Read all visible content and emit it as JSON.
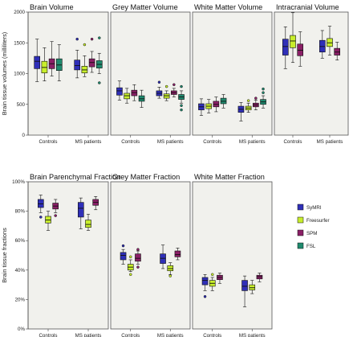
{
  "colors": {
    "SyMRI": "#2f2fb8",
    "Freesurfer": "#c8ee2c",
    "SPM": "#8a1f66",
    "FSL": "#1f8a6e",
    "panel_bg": "#f1f1ed"
  },
  "legend": [
    {
      "name": "SyMRI",
      "color": "#2f2fb8"
    },
    {
      "name": "Freesurfer",
      "color": "#c8ee2c"
    },
    {
      "name": "SPM",
      "color": "#8a1f66"
    },
    {
      "name": "FSL",
      "color": "#1f8a6e"
    }
  ],
  "rows": [
    {
      "ylabel": "Brain tissue volumes (milliliters)",
      "yticks": [
        "0",
        "500",
        "1000",
        "1500",
        "2000"
      ],
      "ylim": [
        0,
        2000
      ]
    },
    {
      "ylabel": "Brain tissue fractions",
      "yticks": [
        "0%",
        "20%",
        "40%",
        "60%",
        "80%",
        "100%"
      ],
      "ylim": [
        0,
        100
      ]
    }
  ],
  "chart_data": [
    {
      "type": "box",
      "title": "Brain Volume",
      "row": 0,
      "ylim": [
        0,
        2000
      ],
      "categories": [
        "Controls",
        "MS patients"
      ],
      "series": [
        {
          "name": "SyMRI",
          "boxes": [
            {
              "min": 870,
              "q1": 1080,
              "median": 1200,
              "q3": 1280,
              "max": 1560,
              "outliers": []
            },
            {
              "min": 930,
              "q1": 1060,
              "median": 1130,
              "q3": 1220,
              "max": 1380,
              "outliers": [
                1560
              ]
            }
          ]
        },
        {
          "name": "Freesurfer",
          "boxes": [
            {
              "min": 880,
              "q1": 1010,
              "median": 1100,
              "q3": 1200,
              "max": 1420,
              "outliers": []
            },
            {
              "min": 950,
              "q1": 1010,
              "median": 1060,
              "q3": 1120,
              "max": 1290,
              "outliers": [
                1470
              ]
            }
          ]
        },
        {
          "name": "SPM",
          "boxes": [
            {
              "min": 960,
              "q1": 1080,
              "median": 1160,
              "q3": 1240,
              "max": 1520,
              "outliers": []
            },
            {
              "min": 1020,
              "q1": 1110,
              "median": 1180,
              "q3": 1240,
              "max": 1360,
              "outliers": [
                1560
              ]
            }
          ]
        },
        {
          "name": "FSL",
          "boxes": [
            {
              "min": 880,
              "q1": 1050,
              "median": 1140,
              "q3": 1240,
              "max": 1470,
              "outliers": []
            },
            {
              "min": 1000,
              "q1": 1090,
              "median": 1150,
              "q3": 1210,
              "max": 1330,
              "outliers": [
                1580,
                850
              ]
            }
          ]
        }
      ]
    },
    {
      "type": "box",
      "title": "Grey Matter Volume",
      "row": 0,
      "ylim": [
        0,
        2000
      ],
      "categories": [
        "Controls",
        "MS patients"
      ],
      "series": [
        {
          "name": "SyMRI",
          "boxes": [
            {
              "min": 570,
              "q1": 650,
              "median": 720,
              "q3": 770,
              "max": 880,
              "outliers": []
            },
            {
              "min": 600,
              "q1": 640,
              "median": 680,
              "q3": 720,
              "max": 780,
              "outliers": [
                860
              ]
            }
          ]
        },
        {
          "name": "Freesurfer",
          "boxes": [
            {
              "min": 520,
              "q1": 590,
              "median": 640,
              "q3": 680,
              "max": 760,
              "outliers": []
            },
            {
              "min": 560,
              "q1": 600,
              "median": 640,
              "q3": 670,
              "max": 720,
              "outliers": [
                790
              ]
            }
          ]
        },
        {
          "name": "SPM",
          "boxes": [
            {
              "min": 560,
              "q1": 640,
              "median": 690,
              "q3": 730,
              "max": 820,
              "outliers": []
            },
            {
              "min": 620,
              "q1": 660,
              "median": 690,
              "q3": 720,
              "max": 760,
              "outliers": [
                820
              ]
            }
          ]
        },
        {
          "name": "FSL",
          "boxes": [
            {
              "min": 450,
              "q1": 550,
              "median": 590,
              "q3": 640,
              "max": 730,
              "outliers": []
            },
            {
              "min": 520,
              "q1": 580,
              "median": 620,
              "q3": 660,
              "max": 720,
              "outliers": [
                790,
                480,
                410
              ]
            }
          ]
        }
      ]
    },
    {
      "type": "box",
      "title": "White Matter Volume",
      "row": 0,
      "ylim": [
        0,
        2000
      ],
      "categories": [
        "Controls",
        "MS patients"
      ],
      "series": [
        {
          "name": "SyMRI",
          "boxes": [
            {
              "min": 320,
              "q1": 410,
              "median": 460,
              "q3": 510,
              "max": 590,
              "outliers": []
            },
            {
              "min": 230,
              "q1": 370,
              "median": 420,
              "q3": 470,
              "max": 530,
              "outliers": []
            }
          ]
        },
        {
          "name": "Freesurfer",
          "boxes": [
            {
              "min": 360,
              "q1": 430,
              "median": 470,
              "q3": 510,
              "max": 580,
              "outliers": []
            },
            {
              "min": 370,
              "q1": 410,
              "median": 440,
              "q3": 470,
              "max": 520,
              "outliers": [
                560
              ]
            }
          ]
        },
        {
          "name": "SPM",
          "boxes": [
            {
              "min": 380,
              "q1": 460,
              "median": 500,
              "q3": 550,
              "max": 620,
              "outliers": []
            },
            {
              "min": 410,
              "q1": 460,
              "median": 490,
              "q3": 520,
              "max": 570,
              "outliers": [
                600
              ]
            }
          ]
        },
        {
          "name": "FSL",
          "boxes": [
            {
              "min": 440,
              "q1": 510,
              "median": 550,
              "q3": 600,
              "max": 660,
              "outliers": []
            },
            {
              "min": 440,
              "q1": 500,
              "median": 540,
              "q3": 580,
              "max": 640,
              "outliers": [
                750,
                690
              ]
            }
          ]
        }
      ]
    },
    {
      "type": "box",
      "title": "Intracranial Volume",
      "row": 0,
      "ylim": [
        0,
        2000
      ],
      "categories": [
        "Controls",
        "MS patients"
      ],
      "series": [
        {
          "name": "SyMRI",
          "boxes": [
            {
              "min": 1080,
              "q1": 1300,
              "median": 1440,
              "q3": 1560,
              "max": 1760,
              "outliers": []
            },
            {
              "min": 1250,
              "q1": 1350,
              "median": 1440,
              "q3": 1540,
              "max": 1700,
              "outliers": []
            }
          ]
        },
        {
          "name": "Freesurfer",
          "boxes": [
            {
              "min": 1180,
              "q1": 1420,
              "median": 1530,
              "q3": 1620,
              "max": 1990,
              "outliers": []
            },
            {
              "min": 1300,
              "q1": 1440,
              "median": 1500,
              "q3": 1570,
              "max": 1770,
              "outliers": []
            }
          ]
        },
        {
          "name": "SPM",
          "boxes": [
            {
              "min": 1120,
              "q1": 1290,
              "median": 1380,
              "q3": 1480,
              "max": 1680,
              "outliers": []
            },
            {
              "min": 1220,
              "q1": 1300,
              "median": 1350,
              "q3": 1410,
              "max": 1510,
              "outliers": []
            }
          ]
        }
      ]
    },
    {
      "type": "box",
      "title": "Brain Parenchymal Fraction",
      "row": 1,
      "ylim": [
        0,
        100
      ],
      "categories": [
        "Controls",
        "MS patients"
      ],
      "series": [
        {
          "name": "SyMRI",
          "boxes": [
            {
              "min": 79,
              "q1": 82.5,
              "median": 85,
              "q3": 88,
              "max": 91,
              "outliers": [
                76
              ]
            },
            {
              "min": 68,
              "q1": 76,
              "median": 82,
              "q3": 86,
              "max": 89,
              "outliers": []
            }
          ]
        },
        {
          "name": "Freesurfer",
          "boxes": [
            {
              "min": 67,
              "q1": 72,
              "median": 74,
              "q3": 76.5,
              "max": 80,
              "outliers": []
            },
            {
              "min": 67,
              "q1": 69,
              "median": 71,
              "q3": 74,
              "max": 78,
              "outliers": []
            }
          ]
        },
        {
          "name": "SPM",
          "boxes": [
            {
              "min": 79,
              "q1": 81.5,
              "median": 83.5,
              "q3": 85.5,
              "max": 88,
              "outliers": [
                77
              ]
            },
            {
              "min": 81,
              "q1": 84,
              "median": 86,
              "q3": 88,
              "max": 90,
              "outliers": []
            }
          ]
        }
      ]
    },
    {
      "type": "box",
      "title": "Grey Matter Fraction",
      "row": 1,
      "ylim": [
        0,
        100
      ],
      "categories": [
        "Controls",
        "MS patients"
      ],
      "series": [
        {
          "name": "SyMRI",
          "boxes": [
            {
              "min": 44,
              "q1": 47,
              "median": 50,
              "q3": 52,
              "max": 54,
              "outliers": [
                56.5
              ]
            },
            {
              "min": 41,
              "q1": 44.5,
              "median": 48,
              "q3": 51,
              "max": 57,
              "outliers": []
            }
          ]
        },
        {
          "name": "Freesurfer",
          "boxes": [
            {
              "min": 39,
              "q1": 40,
              "median": 42,
              "q3": 44,
              "max": 47,
              "outliers": [
                37,
                49
              ]
            },
            {
              "min": 37,
              "q1": 39.5,
              "median": 41,
              "q3": 43,
              "max": 45,
              "outliers": [
                36
              ]
            }
          ]
        },
        {
          "name": "SPM",
          "boxes": [
            {
              "min": 44,
              "q1": 46,
              "median": 48,
              "q3": 51,
              "max": 53,
              "outliers": [
                42,
                54
              ]
            },
            {
              "min": 47,
              "q1": 49,
              "median": 50.5,
              "q3": 53,
              "max": 55,
              "outliers": []
            }
          ]
        }
      ]
    },
    {
      "type": "box",
      "title": "White Matter Fraction",
      "row": 1,
      "ylim": [
        0,
        100
      ],
      "categories": [
        "Controls",
        "MS patients"
      ],
      "series": [
        {
          "name": "SyMRI",
          "boxes": [
            {
              "min": 26,
              "q1": 30,
              "median": 33,
              "q3": 35,
              "max": 37,
              "outliers": [
                22
              ]
            },
            {
              "min": 15,
              "q1": 26,
              "median": 29,
              "q3": 33,
              "max": 36,
              "outliers": []
            }
          ]
        },
        {
          "name": "Freesurfer",
          "boxes": [
            {
              "min": 26,
              "q1": 29,
              "median": 31,
              "q3": 33,
              "max": 35,
              "outliers": [
                37
              ]
            },
            {
              "min": 24,
              "q1": 26.5,
              "median": 28,
              "q3": 30,
              "max": 33,
              "outliers": []
            }
          ]
        },
        {
          "name": "SPM",
          "boxes": [
            {
              "min": 31,
              "q1": 33.5,
              "median": 35,
              "q3": 36.5,
              "max": 38,
              "outliers": []
            },
            {
              "min": 32,
              "q1": 34,
              "median": 35.5,
              "q3": 36.5,
              "max": 38,
              "outliers": []
            }
          ]
        }
      ]
    }
  ]
}
